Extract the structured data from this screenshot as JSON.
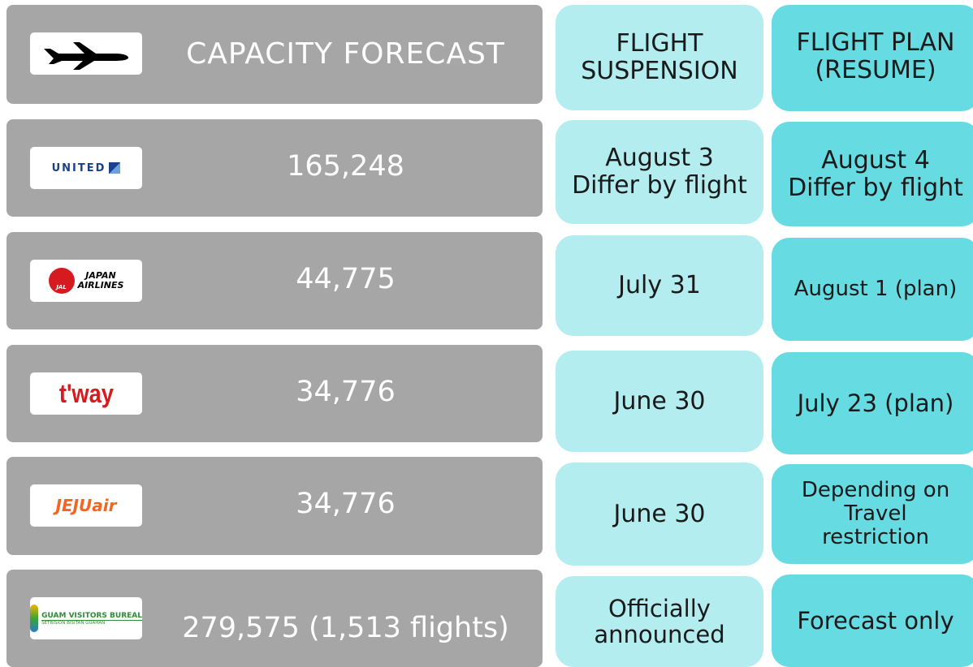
{
  "header": {
    "capacity": "CAPACITY FORECAST",
    "suspension": [
      "FLIGHT",
      "SUSPENSION"
    ],
    "resume": [
      "FLIGHT PLAN",
      "(RESUME)"
    ]
  },
  "rows": [
    {
      "logo": [
        "UNITED"
      ],
      "capacity": "165,248",
      "suspension": [
        "August 3",
        "Differ by flight"
      ],
      "resume": [
        "August 4",
        "Differ by flight"
      ]
    },
    {
      "logo": [
        "JAL",
        "JAPAN",
        "AIRLINES"
      ],
      "capacity": "44,775",
      "suspension": [
        "July 31"
      ],
      "resume": [
        "August 1 (plan)"
      ]
    },
    {
      "logo": [
        "t'way"
      ],
      "capacity": "34,776",
      "suspension": [
        "June 30"
      ],
      "resume": [
        "July 23 (plan)"
      ]
    },
    {
      "logo": [
        "JEJUair"
      ],
      "capacity": "34,776",
      "suspension": [
        "June 30"
      ],
      "resume": [
        "Depending on",
        "Travel",
        "restriction"
      ]
    },
    {
      "logo": [
        "GUAM VISITORS BUREAL",
        "SETBISION BISITAN GUÅHAN"
      ],
      "capacity": "279,575 (1,513 flights)",
      "suspension": [
        "Officially",
        "announced"
      ],
      "resume": [
        "Forecast only"
      ]
    }
  ]
}
